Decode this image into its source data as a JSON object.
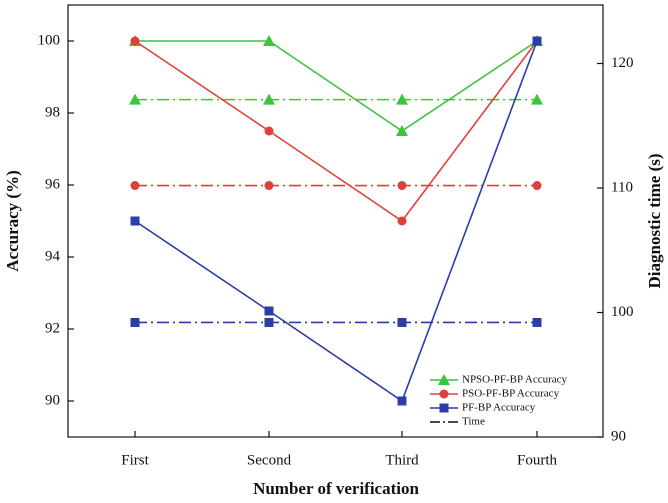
{
  "chart_data": {
    "type": "line",
    "x_label": "Number of verification",
    "y_label": "Accuracy (%)",
    "y2_label": "Diagnostic time (s)",
    "categories": [
      "First",
      "Second",
      "Third",
      "Fourth"
    ],
    "ylim": [
      89,
      101
    ],
    "yticks": [
      90,
      92,
      94,
      96,
      98,
      100
    ],
    "y2lim": [
      90,
      124.7
    ],
    "y2ticks": [
      90,
      100,
      110,
      120
    ],
    "series": [
      {
        "name": "NPSO-PF-BP  Accuracy",
        "color": "#3cc43c",
        "marker": "triangle",
        "values": [
          100,
          100,
          97.5,
          100
        ]
      },
      {
        "name": "PSO-PF-BP  Accuracy",
        "color": "#e0403c",
        "marker": "circle",
        "values": [
          100,
          97.5,
          95,
          100
        ]
      },
      {
        "name": "PF-BP Accuracy",
        "color": "#2c3ca8",
        "marker": "square",
        "values": [
          95,
          92.5,
          90,
          100
        ]
      }
    ],
    "time": {
      "name": "Time",
      "series": [
        {
          "color": "#3cc43c",
          "marker": "triangle",
          "axis": "y2",
          "values": [
            117.1,
            117.1,
            117.1,
            117.1
          ]
        },
        {
          "color": "#e0403c",
          "marker": "circle",
          "axis": "y2",
          "values": [
            110.2,
            110.2,
            110.2,
            110.2
          ]
        },
        {
          "color": "#2c3ca8",
          "marker": "square",
          "axis": "y2",
          "values": [
            99.2,
            99.2,
            99.2,
            99.2
          ]
        }
      ]
    },
    "legend": "lower-right"
  }
}
